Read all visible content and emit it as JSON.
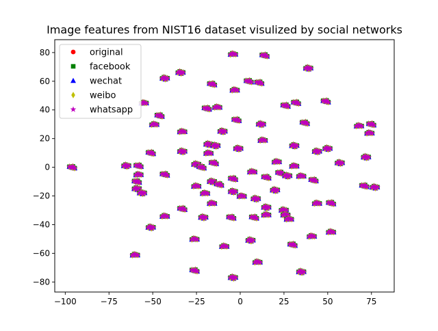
{
  "chart_data": {
    "type": "scatter",
    "title": "Image features from NIST16 dataset visulized by social networks",
    "xlabel": "",
    "ylabel": "",
    "xlim": [
      -106,
      88
    ],
    "ylim": [
      -87,
      89
    ],
    "xticks": [
      -100,
      -75,
      -50,
      -25,
      0,
      25,
      50,
      75
    ],
    "yticks": [
      -80,
      -60,
      -40,
      -20,
      0,
      20,
      40,
      60,
      80
    ],
    "grid": false,
    "legend_position": "top-left",
    "series": [
      {
        "name": "original",
        "marker": "circle",
        "color": "#ff0000"
      },
      {
        "name": "facebook",
        "marker": "square",
        "color": "#008000"
      },
      {
        "name": "wechat",
        "marker": "triangle",
        "color": "#0000ff"
      },
      {
        "name": "weibo",
        "marker": "thin-diamond",
        "color": "#bfbf00"
      },
      {
        "name": "whatsapp",
        "marker": "star",
        "color": "#bf00bf"
      }
    ],
    "note_points": "Each cluster contains overlapping points from all five series at approximately the same location.",
    "clusters": [
      [
        -96,
        0
      ],
      [
        -65,
        1
      ],
      [
        -60,
        -61
      ],
      [
        -59,
        -10
      ],
      [
        -59,
        -15
      ],
      [
        -58,
        -5
      ],
      [
        -58,
        1
      ],
      [
        -56,
        -18
      ],
      [
        -55,
        45
      ],
      [
        -51,
        10
      ],
      [
        -51,
        -42
      ],
      [
        -49,
        30
      ],
      [
        -46,
        36
      ],
      [
        -43,
        62
      ],
      [
        -43,
        -34
      ],
      [
        -43,
        -5
      ],
      [
        -34,
        66
      ],
      [
        -33,
        25
      ],
      [
        -33,
        -29
      ],
      [
        -33,
        11
      ],
      [
        -26,
        -50
      ],
      [
        -26,
        -72
      ],
      [
        -25,
        2
      ],
      [
        -25,
        -13
      ],
      [
        -22,
        0
      ],
      [
        -21,
        -35
      ],
      [
        -20,
        -18
      ],
      [
        -19,
        41
      ],
      [
        -18,
        16
      ],
      [
        -18,
        10
      ],
      [
        -16,
        58
      ],
      [
        -16,
        -10
      ],
      [
        -16,
        -25
      ],
      [
        -15,
        3
      ],
      [
        -14,
        15
      ],
      [
        -13,
        42
      ],
      [
        -12,
        -12
      ],
      [
        -10,
        25
      ],
      [
        -9,
        -55
      ],
      [
        -5,
        -35
      ],
      [
        -4,
        -77
      ],
      [
        -4,
        79
      ],
      [
        -4,
        -8
      ],
      [
        -4,
        -17
      ],
      [
        -3,
        54
      ],
      [
        -2,
        33
      ],
      [
        -1,
        13
      ],
      [
        1,
        -20
      ],
      [
        5,
        60
      ],
      [
        6,
        -51
      ],
      [
        7,
        -3
      ],
      [
        8,
        -35
      ],
      [
        9,
        -22
      ],
      [
        10,
        -66
      ],
      [
        11,
        59
      ],
      [
        12,
        30
      ],
      [
        13,
        19
      ],
      [
        14,
        78
      ],
      [
        15,
        -28
      ],
      [
        15,
        -33
      ],
      [
        15,
        -7
      ],
      [
        20,
        -16
      ],
      [
        21,
        4
      ],
      [
        23,
        -4
      ],
      [
        25,
        -30
      ],
      [
        26,
        -33
      ],
      [
        26,
        43
      ],
      [
        27,
        -6
      ],
      [
        28,
        -36
      ],
      [
        30,
        -54
      ],
      [
        31,
        15
      ],
      [
        31,
        1
      ],
      [
        32,
        45
      ],
      [
        35,
        -73
      ],
      [
        35,
        -6
      ],
      [
        37,
        31
      ],
      [
        39,
        69
      ],
      [
        41,
        -48
      ],
      [
        42,
        -9
      ],
      [
        44,
        11
      ],
      [
        44,
        -25
      ],
      [
        49,
        46
      ],
      [
        50,
        13
      ],
      [
        52,
        -45
      ],
      [
        52,
        -25
      ],
      [
        57,
        3
      ],
      [
        68,
        29
      ],
      [
        71,
        -13
      ],
      [
        72,
        7
      ],
      [
        74,
        24
      ],
      [
        75,
        30
      ],
      [
        77,
        -14
      ]
    ]
  }
}
